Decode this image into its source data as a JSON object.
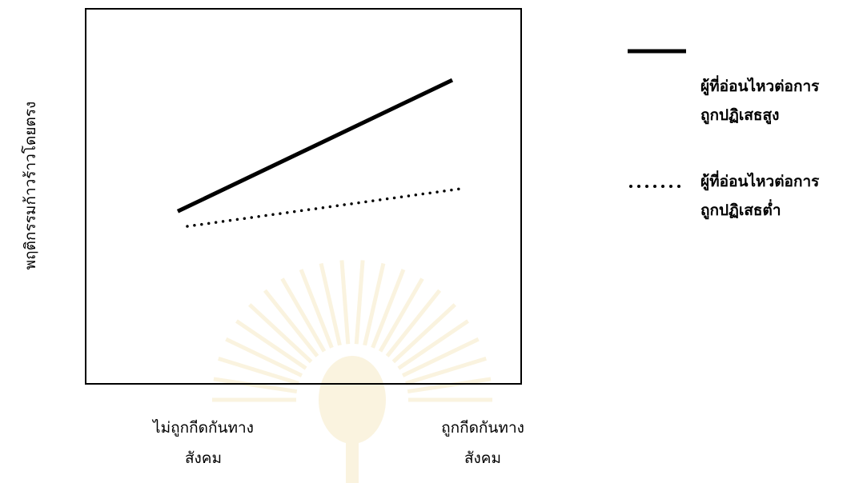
{
  "chart_data": {
    "type": "line",
    "title": "",
    "xlabel": "",
    "ylabel": "พฤติกรรมก้าวร้าวโดยตรง",
    "categories": [
      [
        "ไม่ถูกกีดกันทาง",
        "สังคม"
      ],
      [
        "ถูกกีดกันทาง",
        "สังคม"
      ]
    ],
    "ylim": [
      0,
      10
    ],
    "grid": false,
    "legend_position": "right",
    "series": [
      {
        "name": [
          "ผู้ที่อ่อนไหวต่อการ",
          "ถูกปฏิเสธสูง"
        ],
        "values": [
          4.6,
          8.1
        ],
        "style": "solid",
        "color": "#000000"
      },
      {
        "name": [
          "ผู้ที่อ่อนไหวต่อการ",
          "ถูกปฏิเสธต่ำ"
        ],
        "values": [
          4.2,
          5.2
        ],
        "style": "dotted",
        "color": "#000000"
      }
    ],
    "watermark": "university seal (faint, yellow)"
  }
}
